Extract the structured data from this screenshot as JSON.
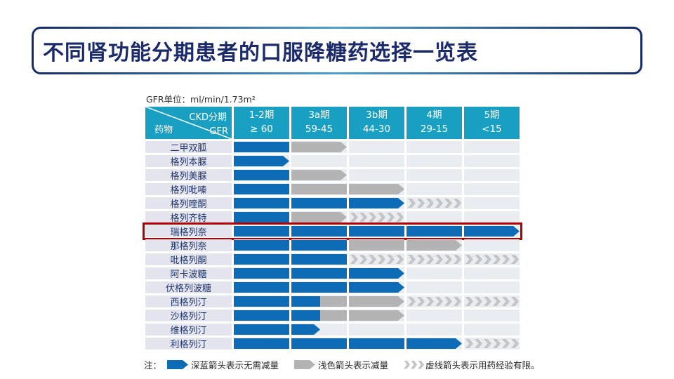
{
  "title": "不同肾功能分期患者的口服降糖药选择一览表",
  "table": {
    "unit_note": "GFR单位：ml/min/1.73m²",
    "corner": {
      "top_right": "CKD分期",
      "bottom_left": "药物",
      "bottom_right": "GFR"
    },
    "columns": [
      {
        "stage": "1-2期",
        "gfr": "≥ 60"
      },
      {
        "stage": "3a期",
        "gfr": "59-45"
      },
      {
        "stage": "3b期",
        "gfr": "44-30"
      },
      {
        "stage": "4期",
        "gfr": "29-15"
      },
      {
        "stage": "5期",
        "gfr": "<15"
      }
    ],
    "rows": [
      {
        "drug": "二甲双胍",
        "highlight": false,
        "cells": [
          "blue",
          "grayTip",
          "",
          "",
          ""
        ]
      },
      {
        "drug": "格列本脲",
        "highlight": false,
        "cells": [
          "blueTip",
          "",
          "",
          "",
          ""
        ]
      },
      {
        "drug": "格列美脲",
        "highlight": false,
        "cells": [
          "blue",
          "grayTip",
          "",
          "",
          ""
        ]
      },
      {
        "drug": "格列吡嗪",
        "highlight": false,
        "cells": [
          "blue",
          "gray",
          "grayTip",
          "",
          ""
        ]
      },
      {
        "drug": "格列喹酮",
        "highlight": false,
        "cells": [
          "blue",
          "blue",
          "blueTip",
          "chev:6",
          ""
        ]
      },
      {
        "drug": "格列齐特",
        "highlight": false,
        "cells": [
          "blue",
          "grayTip",
          "chev:6",
          "",
          ""
        ]
      },
      {
        "drug": "瑞格列奈",
        "highlight": true,
        "cells": [
          "blue",
          "blue",
          "blue",
          "blue",
          "blueTip"
        ]
      },
      {
        "drug": "那格列奈",
        "highlight": false,
        "cells": [
          "blue",
          "blue",
          "gray",
          "grayTip",
          ""
        ]
      },
      {
        "drug": "吡格列酮",
        "highlight": false,
        "cells": [
          "blue",
          "blue",
          "chev:6",
          "chev:6",
          "chev:6"
        ]
      },
      {
        "drug": "阿卡波糖",
        "highlight": false,
        "cells": [
          "blue",
          "blue",
          "blueTip",
          "",
          ""
        ]
      },
      {
        "drug": "伏格列波糖",
        "highlight": false,
        "cells": [
          "blue",
          "blue",
          "blueTip",
          "",
          ""
        ]
      },
      {
        "drug": "西格列汀",
        "highlight": false,
        "cells": [
          "blue",
          "blueGray:52",
          "grayTip",
          "chev:6",
          "chev:6"
        ]
      },
      {
        "drug": "沙格列汀",
        "highlight": false,
        "cells": [
          "blue",
          "blueGray:52",
          "grayTip",
          "",
          ""
        ]
      },
      {
        "drug": "维格列汀",
        "highlight": false,
        "cells": [
          "blue",
          "blueTip:52",
          "",
          "",
          ""
        ]
      },
      {
        "drug": "利格列汀",
        "highlight": false,
        "cells": [
          "blue",
          "blue",
          "blue",
          "blueTip",
          "chev:6"
        ]
      }
    ]
  },
  "legend": {
    "prefix": "注：",
    "items": [
      {
        "icon": "dark-blue-arrow-icon",
        "text": "深蓝箭头表示无需减量"
      },
      {
        "icon": "light-gray-arrow-icon",
        "text": "浅色箭头表示减量"
      },
      {
        "icon": "dashed-chevron-arrow-icon",
        "text": "虚线箭头表示用药经验有限。"
      }
    ]
  },
  "colors": {
    "header_teal": "#189fc2",
    "arrow_blue": "#0d6cb5",
    "arrow_gray": "#b3b3b3",
    "chevron_gray": "#c4c4c4",
    "row_label_bg": "#e4e4ef",
    "cell_bg": "#e9edf2",
    "title_navy": "#1b2a6b",
    "highlight_red": "#b00000"
  }
}
